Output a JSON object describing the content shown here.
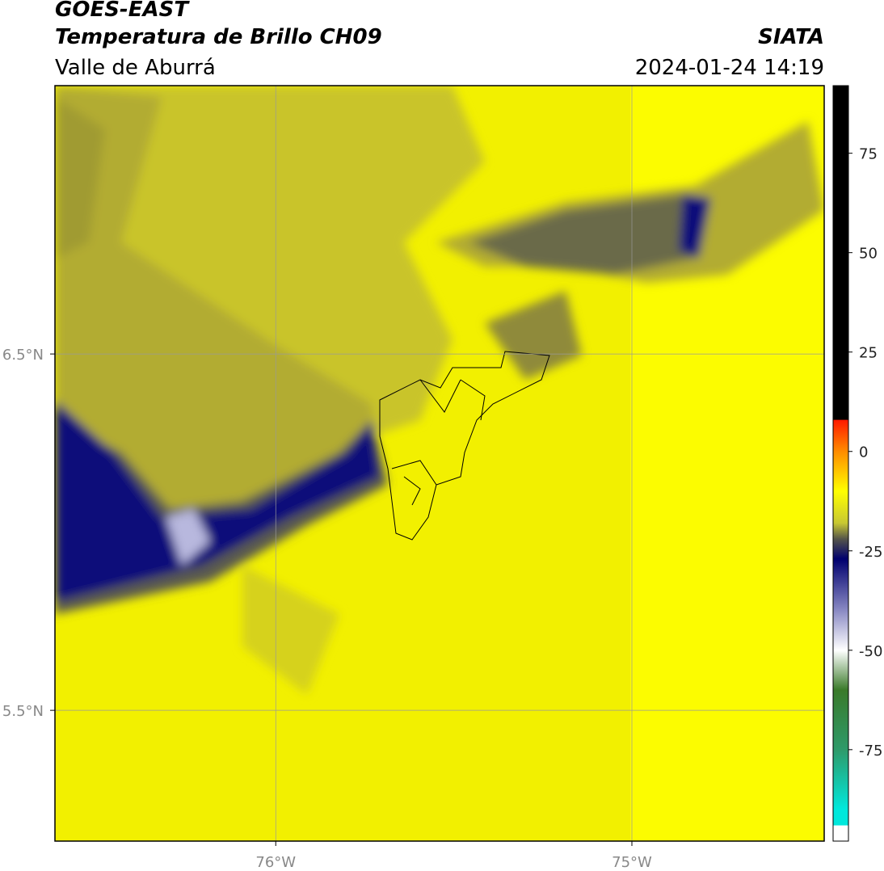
{
  "header": {
    "source": "GOES-EAST",
    "product": "Temperatura de Brillo CH09",
    "region": "Valle de Aburrá",
    "agency": "SIATA",
    "datetime": "2024-01-24 14:19"
  },
  "chart_data": {
    "type": "map",
    "xlim": [
      -76.62,
      -74.46
    ],
    "ylim": [
      5.133,
      7.253
    ],
    "xticks": [
      {
        "value": -76,
        "label": "76°W"
      },
      {
        "value": -75,
        "label": "75°W"
      }
    ],
    "yticks": [
      {
        "value": 6.5,
        "label": "6.5°N"
      },
      {
        "value": 5.5,
        "label": "5.5°N"
      }
    ],
    "grid": true,
    "colorbar": {
      "lim": [
        -98,
        92
      ],
      "ticks": [
        75,
        50,
        25,
        0,
        -25,
        -50,
        -75
      ],
      "stops": [
        {
          "value": 92,
          "color": "#000000"
        },
        {
          "value": 8,
          "color": "#000000"
        },
        {
          "value": 7.9,
          "color": "#ff1a00"
        },
        {
          "value": 0,
          "color": "#ff8c00"
        },
        {
          "value": -10,
          "color": "#ffff00"
        },
        {
          "value": -18,
          "color": "#c8c832"
        },
        {
          "value": -22,
          "color": "#55554a"
        },
        {
          "value": -27,
          "color": "#00006e"
        },
        {
          "value": -40,
          "color": "#8a8ac4"
        },
        {
          "value": -50,
          "color": "#ffffff"
        },
        {
          "value": -60,
          "color": "#3a7a2a"
        },
        {
          "value": -75,
          "color": "#2e9a6a"
        },
        {
          "value": -90,
          "color": "#00e8dc"
        },
        {
          "value": -94,
          "color": "#00e8dc"
        },
        {
          "value": -94.1,
          "color": "#ffffff"
        },
        {
          "value": -98,
          "color": "#ffffff"
        }
      ]
    }
  }
}
